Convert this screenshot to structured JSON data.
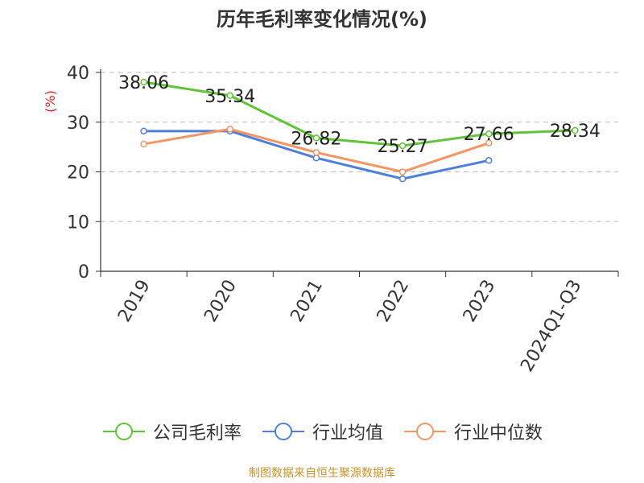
{
  "title": "历年毛利率变化情况(%)",
  "credit": "制图数据来自恒生聚源数据库",
  "colors": {
    "company": "#5fc436",
    "industry_avg": "#4d7fdb",
    "industry_median": "#f59561",
    "credit": "#c8912c",
    "ylabel": "#dd2222"
  },
  "chart_data": {
    "type": "line",
    "title": "历年毛利率变化情况(%)",
    "ylabel": "(%)",
    "xlabel": "",
    "categories": [
      "2019",
      "2020",
      "2021",
      "2022",
      "2023",
      "2024Q1-Q3"
    ],
    "ylim": [
      0,
      40
    ],
    "yticks": [
      0,
      10,
      20,
      30,
      40
    ],
    "grid": true,
    "legend_position": "bottom",
    "series": [
      {
        "name": "公司毛利率",
        "values": [
          38.06,
          35.34,
          26.82,
          25.27,
          27.66,
          28.34
        ],
        "labels": [
          "38.06",
          "35.34",
          "26.82",
          "25.27",
          "27.66",
          "28.34"
        ]
      },
      {
        "name": "行业均值",
        "values": [
          28.2,
          28.2,
          22.8,
          18.6,
          22.3,
          null
        ]
      },
      {
        "name": "行业中位数",
        "values": [
          25.6,
          28.6,
          23.9,
          20.0,
          25.8,
          null
        ]
      }
    ]
  }
}
